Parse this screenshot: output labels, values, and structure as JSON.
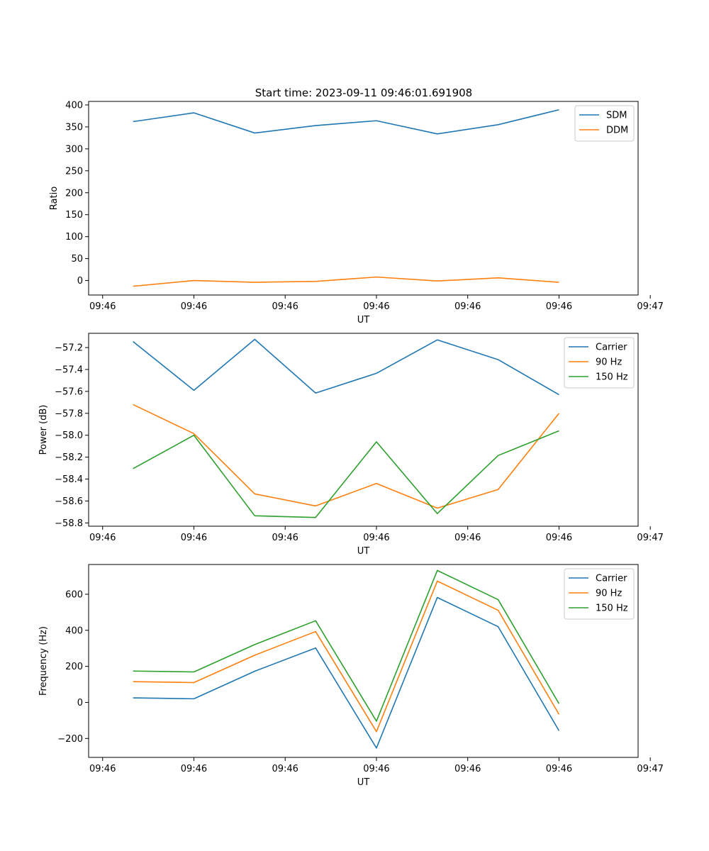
{
  "figure_title": "Start time: 2023-09-11 09:46:01.691908",
  "colors": {
    "blue": "#1f77b4",
    "orange": "#ff7f0e",
    "green": "#2ca02c"
  },
  "chart_data": [
    {
      "type": "line",
      "title": "Start time: 2023-09-11 09:46:01.691908",
      "xlabel": "UT",
      "ylabel": "Ratio",
      "x": [
        1,
        2,
        3,
        4,
        5,
        6,
        7,
        8
      ],
      "xlim": [
        0.27,
        9.3
      ],
      "xticks": [
        0.5,
        2,
        3.5,
        5,
        6.5,
        8,
        9.5
      ],
      "xtick_labels": [
        "09:46",
        "09:46",
        "09:46",
        "09:46",
        "09:46",
        "09:46",
        "09:47"
      ],
      "ylim": [
        -33,
        408
      ],
      "yticks": [
        0,
        50,
        100,
        150,
        200,
        250,
        300,
        350,
        400
      ],
      "ytick_labels": [
        "0",
        "50",
        "100",
        "150",
        "200",
        "250",
        "300",
        "350",
        "400"
      ],
      "legend_position": "top-right",
      "series": [
        {
          "name": "SDM",
          "color": "#1f77b4",
          "values": [
            362,
            382,
            336,
            353,
            364,
            334,
            355,
            389
          ]
        },
        {
          "name": "DDM",
          "color": "#ff7f0e",
          "values": [
            -13,
            0,
            -4,
            -2,
            8,
            -1,
            6,
            -4
          ]
        }
      ]
    },
    {
      "type": "line",
      "title": "",
      "xlabel": "UT",
      "ylabel": "Power (dB)",
      "x": [
        1,
        2,
        3,
        4,
        5,
        6,
        7,
        8
      ],
      "xlim": [
        0.27,
        9.3
      ],
      "xticks": [
        0.5,
        2,
        3.5,
        5,
        6.5,
        8,
        9.5
      ],
      "xtick_labels": [
        "09:46",
        "09:46",
        "09:46",
        "09:46",
        "09:46",
        "09:46",
        "09:47"
      ],
      "ylim": [
        -58.83,
        -57.07
      ],
      "yticks": [
        -58.8,
        -58.6,
        -58.4,
        -58.2,
        -58.0,
        -57.8,
        -57.6,
        -57.4,
        -57.2
      ],
      "ytick_labels": [
        "−58.8",
        "−58.6",
        "−58.4",
        "−58.2",
        "−58.0",
        "−57.8",
        "−57.6",
        "−57.4",
        "−57.2"
      ],
      "legend_position": "top-right",
      "series": [
        {
          "name": "Carrier",
          "color": "#1f77b4",
          "values": [
            -57.145,
            -57.59,
            -57.125,
            -57.615,
            -57.435,
            -57.13,
            -57.31,
            -57.63
          ]
        },
        {
          "name": "90 Hz",
          "color": "#ff7f0e",
          "values": [
            -57.72,
            -57.985,
            -58.535,
            -58.645,
            -58.44,
            -58.665,
            -58.495,
            -57.8
          ]
        },
        {
          "name": "150 Hz",
          "color": "#2ca02c",
          "values": [
            -58.305,
            -58.0,
            -58.735,
            -58.75,
            -58.06,
            -58.715,
            -58.185,
            -57.96
          ]
        }
      ]
    },
    {
      "type": "line",
      "title": "",
      "xlabel": "UT",
      "ylabel": "Frequency (Hz)",
      "x": [
        1,
        2,
        3,
        4,
        5,
        6,
        7,
        8
      ],
      "xlim": [
        0.27,
        9.3
      ],
      "xticks": [
        0.5,
        2,
        3.5,
        5,
        6.5,
        8,
        9.5
      ],
      "xtick_labels": [
        "09:46",
        "09:46",
        "09:46",
        "09:46",
        "09:46",
        "09:46",
        "09:47"
      ],
      "ylim": [
        -305,
        765
      ],
      "yticks": [
        -200,
        0,
        200,
        400,
        600
      ],
      "ytick_labels": [
        "−200",
        "0",
        "200",
        "400",
        "600"
      ],
      "legend_position": "top-right",
      "series": [
        {
          "name": "Carrier",
          "color": "#1f77b4",
          "values": [
            25,
            20,
            173,
            302,
            -253,
            582,
            420,
            -157
          ]
        },
        {
          "name": "90 Hz",
          "color": "#ff7f0e",
          "values": [
            115,
            110,
            262,
            393,
            -162,
            673,
            511,
            -66
          ]
        },
        {
          "name": "150 Hz",
          "color": "#2ca02c",
          "values": [
            174,
            169,
            321,
            453,
            -104,
            732,
            570,
            -7
          ]
        }
      ]
    }
  ]
}
